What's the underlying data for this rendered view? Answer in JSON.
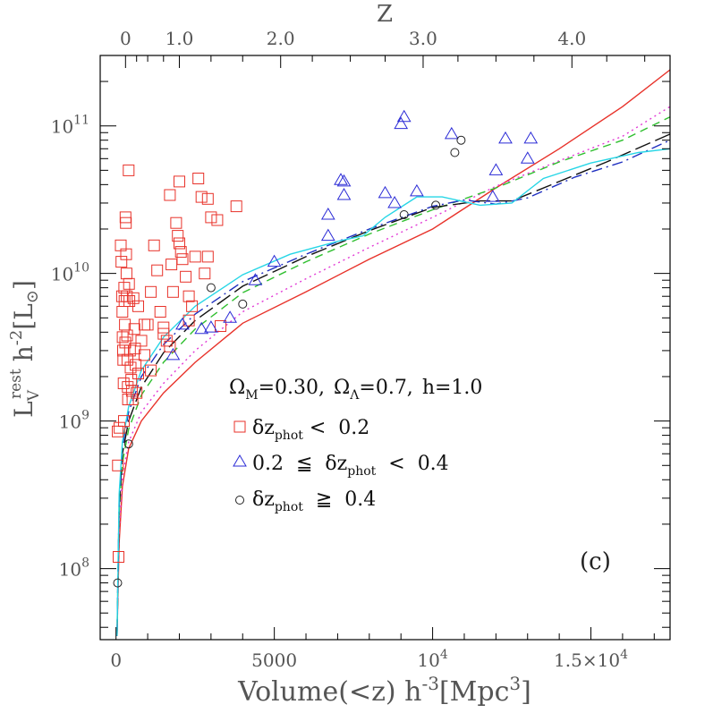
{
  "chart_data": {
    "type": "scatter",
    "x_axis": {
      "label_main": "Volume(<z) h",
      "label_sup": "-3",
      "label_unit": "[Mpc",
      "label_unit_sup": "3",
      "label_close": "]",
      "range": [
        -500,
        17500
      ],
      "ticks": [
        {
          "value": 0,
          "label": "0"
        },
        {
          "value": 5000,
          "label": "5000"
        },
        {
          "value": 10000,
          "label_base": "10",
          "label_exp": "4"
        },
        {
          "value": 15000,
          "label_base": "1.5×10",
          "label_exp": "4"
        }
      ]
    },
    "top_axis": {
      "label": "Z",
      "ticks": [
        {
          "label": "0",
          "volume": 300
        },
        {
          "label": "1.0",
          "volume": 2000
        },
        {
          "label": "2.0",
          "volume": 5200
        },
        {
          "label": "3.0",
          "volume": 9700
        },
        {
          "label": "4.0",
          "volume": 14400
        }
      ]
    },
    "y_axis": {
      "label_main": "L",
      "label_sub": "V",
      "label_sup": "rest",
      "label_h": "h",
      "label_h_sup": "-2",
      "label_unit": "[L",
      "label_unit_sub": "⊙",
      "label_close": "]",
      "scale": "log",
      "range": [
        33000000.0,
        300000000000.0
      ],
      "ticks": [
        {
          "value": 100000000.0,
          "label_base": "10",
          "label_exp": "8"
        },
        {
          "value": 1000000000.0,
          "label_base": "10",
          "label_exp": "9"
        },
        {
          "value": 10000000000.0,
          "label_base": "10",
          "label_exp": "10"
        },
        {
          "value": 100000000000.0,
          "label_base": "10",
          "label_exp": "11"
        }
      ]
    },
    "cosmology_text": {
      "om": "Ω",
      "om_sub": "M",
      "om_val": "=0.30,",
      "ol": "Ω",
      "ol_sub": "Λ",
      "ol_val": "=0.7,",
      "h": "h=1.0"
    },
    "legend": [
      {
        "marker": "square",
        "color": "#e8322a",
        "pre": "δz",
        "sub": "phot",
        "post": " <  0.2"
      },
      {
        "marker": "triangle",
        "color": "#2b2bd6",
        "pre": "0.2  ≦  δz",
        "sub": "phot",
        "post": "  <  0.4"
      },
      {
        "marker": "circle",
        "color": "#222222",
        "pre": "δz",
        "sub": "phot",
        "post": "  ≧  0.4"
      }
    ],
    "panel_label": "(c)",
    "series": [
      {
        "marker": "square",
        "color": "#e8322a",
        "points": [
          [
            50,
            850000000.0
          ],
          [
            60,
            500000000.0
          ],
          [
            80,
            120000000.0
          ],
          [
            110,
            900000000.0
          ],
          [
            150,
            15500000000.0
          ],
          [
            170,
            12000000000.0
          ],
          [
            190,
            7000000000.0
          ],
          [
            200,
            5500000000.0
          ],
          [
            210,
            3700000000.0
          ],
          [
            220,
            3000000000.0
          ],
          [
            230,
            2600000000.0
          ],
          [
            240,
            1800000000.0
          ],
          [
            250,
            1000000000.0
          ],
          [
            260,
            8000000000.0
          ],
          [
            270,
            6500000000.0
          ],
          [
            280,
            4500000000.0
          ],
          [
            290,
            3400000000.0
          ],
          [
            300,
            24000000000.0
          ],
          [
            310,
            22000000000.0
          ],
          [
            320,
            13500000000.0
          ],
          [
            330,
            10000000000.0
          ],
          [
            340,
            7000000000.0
          ],
          [
            350,
            3800000000.0
          ],
          [
            360,
            2600000000.0
          ],
          [
            370,
            1700000000.0
          ],
          [
            380,
            1400000000.0
          ],
          [
            400,
            50000000000.0
          ],
          [
            410,
            8500000000.0
          ],
          [
            420,
            6500000000.0
          ],
          [
            440,
            3000000000.0
          ],
          [
            460,
            2300000000.0
          ],
          [
            480,
            1900000000.0
          ],
          [
            500,
            1600000000.0
          ],
          [
            520,
            1400000000.0
          ],
          [
            550,
            6800000000.0
          ],
          [
            580,
            4200000000.0
          ],
          [
            600,
            3100000000.0
          ],
          [
            620,
            2400000000.0
          ],
          [
            700,
            6000000000.0
          ],
          [
            800,
            3500000000.0
          ],
          [
            900,
            2800000000.0
          ],
          [
            1000,
            4500000000.0
          ],
          [
            1100,
            7500000000.0
          ],
          [
            1200,
            15500000000.0
          ],
          [
            1300,
            10500000000.0
          ],
          [
            1400,
            5500000000.0
          ],
          [
            1500,
            4300000000.0
          ],
          [
            1600,
            3500000000.0
          ],
          [
            1700,
            3200000000.0
          ],
          [
            1800,
            7500000000.0
          ],
          [
            1900,
            22000000000.0
          ],
          [
            1950,
            18000000000.0
          ],
          [
            2000,
            16000000000.0
          ],
          [
            2050,
            14000000000.0
          ],
          [
            2100,
            12500000000.0
          ],
          [
            2200,
            9500000000.0
          ],
          [
            2300,
            7000000000.0
          ],
          [
            2400,
            6000000000.0
          ],
          [
            2500,
            13000000000.0
          ],
          [
            2600,
            44000000000.0
          ],
          [
            2700,
            33000000000.0
          ],
          [
            2800,
            10000000000.0
          ],
          [
            2900,
            13000000000.0
          ],
          [
            3000,
            24000000000.0
          ],
          [
            3200,
            23000000000.0
          ],
          [
            3300,
            4400000000.0
          ],
          [
            3800,
            28500000000.0
          ],
          [
            1700,
            34000000000.0
          ],
          [
            2000,
            42000000000.0
          ],
          [
            2900,
            32000000000.0
          ],
          [
            1750,
            11500000000.0
          ],
          [
            2300,
            4800000000.0
          ],
          [
            1500,
            3900000000.0
          ],
          [
            1100,
            2200000000.0
          ],
          [
            700,
            2100000000.0
          ],
          [
            650,
            1550000000.0
          ],
          [
            900,
            4500000000.0
          ]
        ]
      },
      {
        "marker": "triangle",
        "color": "#2b2bd6",
        "points": [
          [
            1800,
            2800000000.0
          ],
          [
            2100,
            4500000000.0
          ],
          [
            2700,
            4200000000.0
          ],
          [
            3000,
            4300000000.0
          ],
          [
            3600,
            5000000000.0
          ],
          [
            4400,
            9000000000.0
          ],
          [
            5000,
            12000000000.0
          ],
          [
            6700,
            18000000000.0
          ],
          [
            6700,
            25000000000.0
          ],
          [
            7100,
            43000000000.0
          ],
          [
            7200,
            42000000000.0
          ],
          [
            7200,
            34000000000.0
          ],
          [
            8500,
            35000000000.0
          ],
          [
            8800,
            30000000000.0
          ],
          [
            9000,
            103000000000.0
          ],
          [
            9100,
            115000000000.0
          ],
          [
            9500,
            36000000000.0
          ],
          [
            10600,
            88000000000.0
          ],
          [
            11900,
            33000000000.0
          ],
          [
            12000,
            50000000000.0
          ],
          [
            12300,
            82000000000.0
          ],
          [
            13000,
            60000000000.0
          ],
          [
            13100,
            82000000000.0
          ]
        ]
      },
      {
        "marker": "circle",
        "color": "#222222",
        "points": [
          [
            50,
            80000000.0
          ],
          [
            400,
            700000000.0
          ],
          [
            3000,
            8000000000.0
          ],
          [
            4000,
            6200000000.0
          ],
          [
            9100,
            25000000000.0
          ],
          [
            10100,
            29000000000.0
          ],
          [
            10700,
            66000000000.0
          ],
          [
            10900,
            80000000000.0
          ]
        ]
      }
    ],
    "curves": [
      {
        "style": "solid",
        "color": "#e8322a",
        "points": [
          [
            30,
            35000000.0
          ],
          [
            100,
            150000000.0
          ],
          [
            200,
            360000000.0
          ],
          [
            400,
            650000000.0
          ],
          [
            800,
            1000000000.0
          ],
          [
            1500,
            1550000000.0
          ],
          [
            2500,
            2500000000.0
          ],
          [
            4000,
            4600000000.0
          ],
          [
            6000,
            7500000000.0
          ],
          [
            8000,
            12500000000.0
          ],
          [
            10000,
            20000000000.0
          ],
          [
            12000,
            38000000000.0
          ],
          [
            14000,
            70000000000.0
          ],
          [
            16000,
            135000000000.0
          ],
          [
            17500,
            240000000000.0
          ]
        ]
      },
      {
        "style": "dotted",
        "color": "#e23ad6",
        "points": [
          [
            30,
            35000000.0
          ],
          [
            100,
            180000000.0
          ],
          [
            200,
            420000000.0
          ],
          [
            400,
            720000000.0
          ],
          [
            800,
            1150000000.0
          ],
          [
            1500,
            1800000000.0
          ],
          [
            2500,
            3000000000.0
          ],
          [
            4000,
            5500000000.0
          ],
          [
            6000,
            9200000000.0
          ],
          [
            8000,
            15000000000.0
          ],
          [
            10000,
            24000000000.0
          ],
          [
            12000,
            39000000000.0
          ],
          [
            14000,
            58000000000.0
          ],
          [
            16000,
            85000000000.0
          ],
          [
            17500,
            135000000000.0
          ]
        ]
      },
      {
        "style": "dashed",
        "color": "#2fbf2f",
        "points": [
          [
            30,
            35000000.0
          ],
          [
            100,
            240000000.0
          ],
          [
            200,
            520000000.0
          ],
          [
            400,
            880000000.0
          ],
          [
            800,
            1500000000.0
          ],
          [
            1500,
            2500000000.0
          ],
          [
            2500,
            4200000000.0
          ],
          [
            4000,
            7400000000.0
          ],
          [
            6000,
            12000000000.0
          ],
          [
            8000,
            18500000000.0
          ],
          [
            10000,
            27000000000.0
          ],
          [
            12000,
            38000000000.0
          ],
          [
            14000,
            57000000000.0
          ],
          [
            16000,
            80000000000.0
          ],
          [
            17500,
            115000000000.0
          ]
        ]
      },
      {
        "style": "longdash",
        "color": "#111111",
        "points": [
          [
            30,
            35000000.0
          ],
          [
            100,
            260000000.0
          ],
          [
            200,
            600000000.0
          ],
          [
            400,
            1000000000.0
          ],
          [
            800,
            1700000000.0
          ],
          [
            1500,
            2900000000.0
          ],
          [
            2500,
            4800000000.0
          ],
          [
            4000,
            8200000000.0
          ],
          [
            6000,
            13000000000.0
          ],
          [
            8000,
            19500000000.0
          ],
          [
            10000,
            28000000000.0
          ],
          [
            11500,
            31000000000.0
          ],
          [
            12500,
            31000000000.0
          ],
          [
            14000,
            42000000000.0
          ],
          [
            15500,
            57000000000.0
          ],
          [
            17500,
            88000000000.0
          ]
        ]
      },
      {
        "style": "dashdot",
        "color": "#1f2fc0",
        "points": [
          [
            30,
            35000000.0
          ],
          [
            100,
            290000000.0
          ],
          [
            200,
            670000000.0
          ],
          [
            400,
            1150000000.0
          ],
          [
            800,
            2000000000.0
          ],
          [
            1500,
            3300000000.0
          ],
          [
            2500,
            5300000000.0
          ],
          [
            4000,
            8800000000.0
          ],
          [
            6000,
            13500000000.0
          ],
          [
            8000,
            20000000000.0
          ],
          [
            10000,
            28500000000.0
          ],
          [
            11000,
            31500000000.0
          ],
          [
            12000,
            29500000000.0
          ],
          [
            13000,
            32500000000.0
          ],
          [
            14500,
            45000000000.0
          ],
          [
            16000,
            57000000000.0
          ],
          [
            17500,
            80000000000.0
          ]
        ]
      },
      {
        "style": "solid",
        "color": "#27d6e6",
        "points": [
          [
            30,
            35000000.0
          ],
          [
            100,
            320000000.0
          ],
          [
            200,
            720000000.0
          ],
          [
            400,
            1250000000.0
          ],
          [
            800,
            2200000000.0
          ],
          [
            1500,
            3700000000.0
          ],
          [
            2500,
            6000000000.0
          ],
          [
            4000,
            9800000000.0
          ],
          [
            5500,
            13500000000.0
          ],
          [
            7000,
            16500000000.0
          ],
          [
            7800,
            18000000000.0
          ],
          [
            8500,
            24000000000.0
          ],
          [
            9500,
            33000000000.0
          ],
          [
            10300,
            33000000000.0
          ],
          [
            11500,
            29000000000.0
          ],
          [
            12500,
            30000000000.0
          ],
          [
            13500,
            44000000000.0
          ],
          [
            15000,
            56000000000.0
          ],
          [
            16500,
            66000000000.0
          ],
          [
            17500,
            70000000000.0
          ]
        ]
      }
    ]
  }
}
